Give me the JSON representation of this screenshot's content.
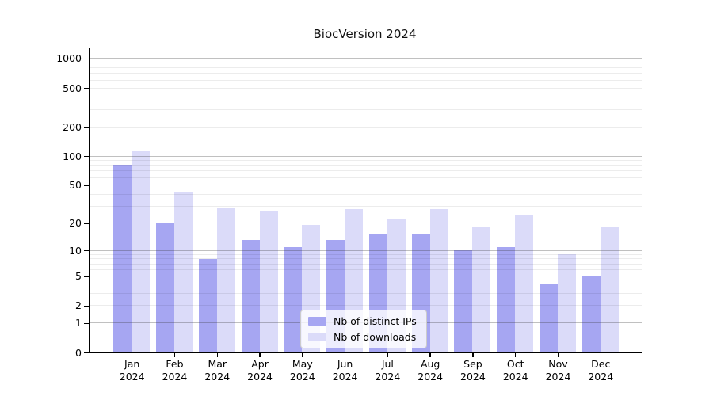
{
  "chart_data": {
    "type": "bar",
    "title": "BiocVersion 2024",
    "categories": [
      "Jan",
      "Feb",
      "Mar",
      "Apr",
      "May",
      "Jun",
      "Jul",
      "Aug",
      "Sep",
      "Oct",
      "Nov",
      "Dec"
    ],
    "category_year": "2024",
    "series": [
      {
        "name": "Nb of distinct IPs",
        "color": "#a6a6f2",
        "values": [
          82,
          20,
          8,
          13,
          11,
          13,
          15,
          15,
          10,
          11,
          4,
          5
        ]
      },
      {
        "name": "Nb of downloads",
        "color": "#dbdbf9",
        "values": [
          113,
          43,
          29,
          27,
          19,
          28,
          22,
          28,
          18,
          24,
          9,
          18
        ]
      }
    ],
    "xlabel": "",
    "ylabel": "",
    "y_scale": "log1p",
    "ylim": [
      0,
      1255
    ],
    "y_ticks_labeled": [
      0,
      1,
      2,
      5,
      10,
      20,
      50,
      100,
      200,
      500,
      1000
    ],
    "y_major_grid": [
      1,
      10,
      100,
      1000
    ],
    "y_minor_grid": [
      2,
      3,
      4,
      5,
      6,
      7,
      8,
      9,
      20,
      30,
      40,
      50,
      60,
      70,
      80,
      90,
      200,
      300,
      400,
      500,
      600,
      700,
      800,
      900
    ],
    "grid": "horizontal",
    "legend_position": "lower center"
  },
  "colors": {
    "bar_distinct_ips": "#a6a6f2",
    "bar_downloads": "#dbdbf9",
    "major_grid": "#b5b5b5",
    "minor_grid": "#ececec",
    "spine": "#000000",
    "legend_border": "#cccccc"
  }
}
